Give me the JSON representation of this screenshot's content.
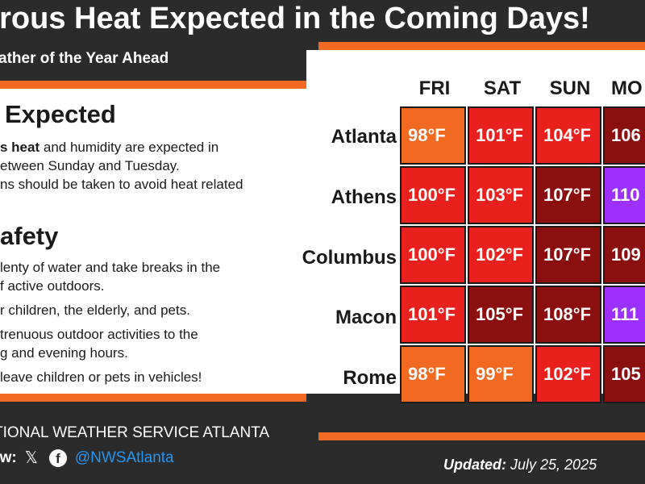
{
  "header": {
    "title": "erous Heat Expected in the Coming Days!",
    "subtitle": "ather of the Year Ahead"
  },
  "expected": {
    "title": "Expected",
    "line1_bold": "s heat",
    "line1_rest": " and humidity are expected in",
    "line2": "etween Sunday and Tuesday.",
    "line3": "ns should be taken to avoid heat related"
  },
  "safety": {
    "title": "afety",
    "line1": "lenty of water and take breaks in the",
    "line2": "f active outdoors.",
    "line3": "r children, the elderly, and pets.",
    "line4": "trenuous outdoor activities to the",
    "line5": "g and evening hours.",
    "line6": "leave children or pets in vehicles!"
  },
  "footer": {
    "nws": "TIONAL WEATHER SERVICE ATLANTA",
    "follow": "ow:",
    "x_glyph": "𝕏",
    "fb_glyph": "f",
    "handle": "@NWSAtlanta",
    "updated_label": "Updated:",
    "updated_date": "July 25, 2025"
  },
  "icons": [
    "x-icon",
    "facebook-icon"
  ],
  "colors": {
    "orange": "#f26a21",
    "red": "#e8211f",
    "dark_red": "#8b0f0f",
    "purple": "#9b30ff",
    "dark_bg": "#2b2b2b",
    "handle_blue": "#2196f3"
  },
  "table": {
    "days": [
      "FRI",
      "SAT",
      "SUN",
      "MO"
    ],
    "cities": [
      "Atlanta",
      "Athens",
      "Columbus",
      "Macon",
      "Rome"
    ],
    "rows": [
      {
        "temps": [
          "98°F",
          "101°F",
          "104°F",
          "106"
        ],
        "levels": [
          "orange",
          "red",
          "red",
          "dark_red"
        ]
      },
      {
        "temps": [
          "100°F",
          "103°F",
          "107°F",
          "110"
        ],
        "levels": [
          "red",
          "red",
          "dark_red",
          "purple"
        ]
      },
      {
        "temps": [
          "100°F",
          "102°F",
          "107°F",
          "109"
        ],
        "levels": [
          "red",
          "red",
          "dark_red",
          "dark_red"
        ]
      },
      {
        "temps": [
          "101°F",
          "105°F",
          "108°F",
          "111"
        ],
        "levels": [
          "red",
          "dark_red",
          "dark_red",
          "purple"
        ]
      },
      {
        "temps": [
          "98°F",
          "99°F",
          "102°F",
          "105"
        ],
        "levels": [
          "orange",
          "orange",
          "red",
          "dark_red"
        ]
      }
    ]
  }
}
